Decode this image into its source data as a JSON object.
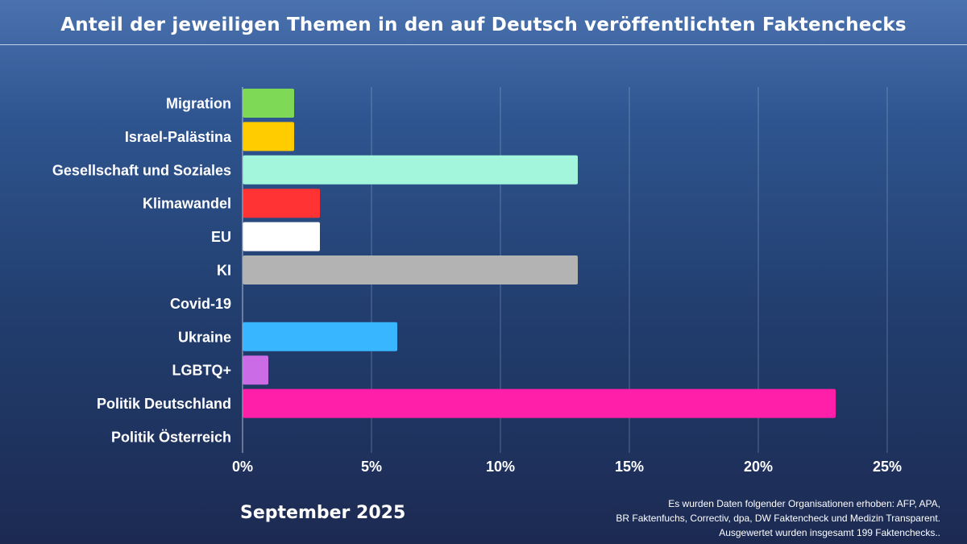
{
  "chart_data": {
    "type": "bar",
    "orientation": "horizontal",
    "title": "Anteil der jeweiligen Themen in den auf Deutsch veröffentlichten Faktenchecks",
    "categories": [
      "Migration",
      "Israel-Palästina",
      "Gesellschaft und Soziales",
      "Klimawandel",
      "EU",
      "KI",
      "Covid-19",
      "Ukraine",
      "LGBTQ+",
      "Politik Deutschland",
      "Politik Österreich"
    ],
    "values": [
      2,
      2,
      13,
      3,
      3,
      13,
      0,
      6,
      1,
      23,
      0
    ],
    "colors": [
      "#7ed957",
      "#ffcc00",
      "#a3f5dc",
      "#ff3333",
      "#ffffff",
      "#b3b3b3",
      "#ffffff",
      "#38b6ff",
      "#cb6ce6",
      "#ff1fa8",
      "#ffffff"
    ],
    "xlim": [
      0,
      25
    ],
    "xticks": [
      0,
      5,
      10,
      15,
      20,
      25
    ],
    "xtick_labels": [
      "0%",
      "5%",
      "10%",
      "15%",
      "20%",
      "25%"
    ],
    "unit": "%",
    "grid": "vertical",
    "xlabel": "",
    "ylabel": ""
  },
  "footer": {
    "month": "September 2025",
    "source_lines": [
      "Es wurden Daten folgender Organisationen erhoben: AFP, APA,",
      "BR Faktenfuchs, Correctiv, dpa, DW Faktencheck und Medizin Transparent.",
      "Ausgewertet wurden insgesamt 199 Faktenchecks.."
    ]
  }
}
